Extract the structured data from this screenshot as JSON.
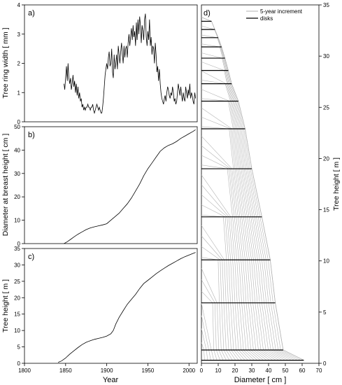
{
  "chart_data": [
    {
      "panel": "a)",
      "type": "line",
      "xlabel": "",
      "ylabel": "Tree ring width  [ mm ]",
      "xlim": [
        1800,
        2010
      ],
      "ylim": [
        0,
        4
      ],
      "yticks": [
        0,
        1,
        2,
        3,
        4
      ],
      "series": [
        {
          "points": [
            [
              1848,
              1.3
            ],
            [
              1849,
              1.1
            ],
            [
              1850,
              1.5
            ],
            [
              1851,
              1.9
            ],
            [
              1852,
              1.4
            ],
            [
              1853,
              2.0
            ],
            [
              1854,
              1.5
            ],
            [
              1855,
              1.3
            ],
            [
              1856,
              1.5
            ],
            [
              1857,
              1.1
            ],
            [
              1858,
              1.3
            ],
            [
              1859,
              1.6
            ],
            [
              1860,
              1.2
            ],
            [
              1861,
              1.4
            ],
            [
              1862,
              1.0
            ],
            [
              1863,
              1.3
            ],
            [
              1864,
              0.9
            ],
            [
              1865,
              1.2
            ],
            [
              1866,
              0.8
            ],
            [
              1867,
              1.0
            ],
            [
              1868,
              0.7
            ],
            [
              1869,
              0.8
            ],
            [
              1870,
              0.5
            ],
            [
              1871,
              0.6
            ],
            [
              1872,
              0.4
            ],
            [
              1873,
              0.5
            ],
            [
              1874,
              0.4
            ],
            [
              1875,
              0.5
            ],
            [
              1876,
              0.5
            ],
            [
              1877,
              0.6
            ],
            [
              1878,
              0.5
            ],
            [
              1879,
              0.5
            ],
            [
              1880,
              0.4
            ],
            [
              1881,
              0.5
            ],
            [
              1882,
              0.5
            ],
            [
              1883,
              0.6
            ],
            [
              1884,
              0.4
            ],
            [
              1885,
              0.3
            ],
            [
              1886,
              0.4
            ],
            [
              1887,
              0.5
            ],
            [
              1888,
              0.6
            ],
            [
              1889,
              0.5
            ],
            [
              1890,
              0.4
            ],
            [
              1891,
              0.5
            ],
            [
              1892,
              0.4
            ],
            [
              1893,
              0.3
            ],
            [
              1894,
              0.3
            ],
            [
              1895,
              0.5
            ],
            [
              1896,
              0.8
            ],
            [
              1897,
              1.2
            ],
            [
              1898,
              1.6
            ],
            [
              1899,
              1.8
            ],
            [
              1900,
              2.0
            ],
            [
              1901,
              1.8
            ],
            [
              1902,
              2.2
            ],
            [
              1903,
              2.4
            ],
            [
              1904,
              1.9
            ],
            [
              1905,
              2.0
            ],
            [
              1906,
              2.5
            ],
            [
              1907,
              1.7
            ],
            [
              1908,
              1.5
            ],
            [
              1909,
              2.3
            ],
            [
              1910,
              1.8
            ],
            [
              1911,
              2.0
            ],
            [
              1912,
              2.3
            ],
            [
              1913,
              1.8
            ],
            [
              1914,
              2.6
            ],
            [
              1915,
              2.3
            ],
            [
              1916,
              2.0
            ],
            [
              1917,
              2.4
            ],
            [
              1918,
              2.7
            ],
            [
              1919,
              2.3
            ],
            [
              1920,
              2.0
            ],
            [
              1921,
              2.6
            ],
            [
              1922,
              2.2
            ],
            [
              1923,
              2.5
            ],
            [
              1924,
              2.6
            ],
            [
              1925,
              2.2
            ],
            [
              1926,
              2.7
            ],
            [
              1927,
              3.0
            ],
            [
              1928,
              2.6
            ],
            [
              1929,
              2.9
            ],
            [
              1930,
              3.2
            ],
            [
              1931,
              2.8
            ],
            [
              1932,
              3.3
            ],
            [
              1933,
              2.9
            ],
            [
              1934,
              3.1
            ],
            [
              1935,
              2.6
            ],
            [
              1936,
              3.4
            ],
            [
              1937,
              2.8
            ],
            [
              1938,
              3.5
            ],
            [
              1939,
              3.0
            ],
            [
              1940,
              3.6
            ],
            [
              1941,
              3.3
            ],
            [
              1942,
              2.7
            ],
            [
              1943,
              3.3
            ],
            [
              1944,
              3.1
            ],
            [
              1945,
              2.8
            ],
            [
              1946,
              3.5
            ],
            [
              1947,
              3.7
            ],
            [
              1948,
              2.9
            ],
            [
              1949,
              2.6
            ],
            [
              1950,
              3.1
            ],
            [
              1951,
              2.8
            ],
            [
              1952,
              3.5
            ],
            [
              1953,
              2.6
            ],
            [
              1954,
              2.9
            ],
            [
              1955,
              2.3
            ],
            [
              1956,
              2.6
            ],
            [
              1957,
              2.5
            ],
            [
              1958,
              2.0
            ],
            [
              1959,
              2.7
            ],
            [
              1960,
              2.3
            ],
            [
              1961,
              1.7
            ],
            [
              1962,
              1.9
            ],
            [
              1963,
              1.4
            ],
            [
              1964,
              1.8
            ],
            [
              1965,
              1.3
            ],
            [
              1966,
              1.0
            ],
            [
              1967,
              0.8
            ],
            [
              1968,
              0.7
            ],
            [
              1969,
              0.6
            ],
            [
              1970,
              0.8
            ],
            [
              1971,
              0.9
            ],
            [
              1972,
              0.7
            ],
            [
              1973,
              1.0
            ],
            [
              1974,
              1.2
            ],
            [
              1975,
              1.1
            ],
            [
              1976,
              0.9
            ],
            [
              1977,
              0.8
            ],
            [
              1978,
              1.0
            ],
            [
              1979,
              0.9
            ],
            [
              1980,
              1.2
            ],
            [
              1981,
              1.0
            ],
            [
              1982,
              0.7
            ],
            [
              1983,
              0.8
            ],
            [
              1984,
              0.6
            ],
            [
              1985,
              0.7
            ],
            [
              1986,
              1.0
            ],
            [
              1987,
              1.3
            ],
            [
              1988,
              1.1
            ],
            [
              1989,
              0.9
            ],
            [
              1990,
              1.2
            ],
            [
              1991,
              0.9
            ],
            [
              1992,
              0.7
            ],
            [
              1993,
              1.0
            ],
            [
              1994,
              0.8
            ],
            [
              1995,
              0.7
            ],
            [
              1996,
              1.2
            ],
            [
              1997,
              1.0
            ],
            [
              1998,
              0.8
            ],
            [
              1999,
              1.1
            ],
            [
              2000,
              0.9
            ],
            [
              2001,
              1.3
            ],
            [
              2002,
              0.8
            ],
            [
              2003,
              1.0
            ],
            [
              2004,
              0.9
            ],
            [
              2005,
              0.7
            ],
            [
              2006,
              0.6
            ],
            [
              2007,
              1.0
            ],
            [
              2008,
              0.8
            ]
          ]
        }
      ]
    },
    {
      "panel": "b)",
      "type": "line",
      "xlabel": "",
      "ylabel": "Diameter at breast height  [ cm ]",
      "xlim": [
        1800,
        2010
      ],
      "ylim": [
        0,
        50
      ],
      "yticks": [
        0,
        10,
        20,
        30,
        40,
        50
      ],
      "series": [
        {
          "points": [
            [
              1848,
              0
            ],
            [
              1852,
              0.8
            ],
            [
              1856,
              1.8
            ],
            [
              1860,
              2.8
            ],
            [
              1865,
              4.0
            ],
            [
              1870,
              5.0
            ],
            [
              1875,
              6.0
            ],
            [
              1880,
              6.7
            ],
            [
              1885,
              7.2
            ],
            [
              1890,
              7.6
            ],
            [
              1895,
              8.0
            ],
            [
              1900,
              8.5
            ],
            [
              1905,
              10.0
            ],
            [
              1910,
              11.5
            ],
            [
              1915,
              13.0
            ],
            [
              1920,
              15.0
            ],
            [
              1925,
              17.0
            ],
            [
              1930,
              19.5
            ],
            [
              1935,
              22.5
            ],
            [
              1940,
              25.5
            ],
            [
              1945,
              29.0
            ],
            [
              1950,
              32.0
            ],
            [
              1955,
              34.5
            ],
            [
              1960,
              37.0
            ],
            [
              1965,
              39.5
            ],
            [
              1970,
              41.0
            ],
            [
              1975,
              42.0
            ],
            [
              1980,
              42.7
            ],
            [
              1985,
              43.7
            ],
            [
              1990,
              45.0
            ],
            [
              1995,
              46.0
            ],
            [
              2000,
              47.0
            ],
            [
              2005,
              48.0
            ],
            [
              2008,
              48.7
            ]
          ]
        }
      ]
    },
    {
      "panel": "c)",
      "type": "line",
      "xlabel": "Year",
      "ylabel": "Tree height  [ m ]",
      "xlim": [
        1800,
        2010
      ],
      "ylim": [
        0,
        35
      ],
      "yticks": [
        0,
        5,
        10,
        15,
        20,
        25,
        30,
        35
      ],
      "xticks": [
        1800,
        1850,
        1900,
        1950,
        2000
      ],
      "series": [
        {
          "points": [
            [
              1841,
              0.3
            ],
            [
              1845,
              0.7
            ],
            [
              1850,
              1.6
            ],
            [
              1855,
              2.8
            ],
            [
              1860,
              3.8
            ],
            [
              1865,
              4.8
            ],
            [
              1870,
              5.7
            ],
            [
              1875,
              6.4
            ],
            [
              1880,
              6.9
            ],
            [
              1885,
              7.3
            ],
            [
              1890,
              7.6
            ],
            [
              1895,
              7.9
            ],
            [
              1900,
              8.3
            ],
            [
              1905,
              9.0
            ],
            [
              1908,
              10.0
            ],
            [
              1911,
              12.0
            ],
            [
              1915,
              14.0
            ],
            [
              1920,
              16.0
            ],
            [
              1925,
              18.0
            ],
            [
              1930,
              19.5
            ],
            [
              1935,
              21.0
            ],
            [
              1940,
              22.8
            ],
            [
              1945,
              24.3
            ],
            [
              1950,
              25.3
            ],
            [
              1955,
              26.3
            ],
            [
              1960,
              27.3
            ],
            [
              1965,
              28.2
            ],
            [
              1970,
              29.0
            ],
            [
              1975,
              29.8
            ],
            [
              1980,
              30.5
            ],
            [
              1985,
              31.2
            ],
            [
              1990,
              31.9
            ],
            [
              1995,
              32.5
            ],
            [
              2000,
              33.0
            ],
            [
              2005,
              33.5
            ],
            [
              2008,
              33.8
            ]
          ]
        }
      ]
    },
    {
      "panel": "d)",
      "type": "line",
      "xlabel": "Diameter  [ cm ]",
      "ylabel": "Tree height  [ m ]",
      "xlim": [
        0,
        70
      ],
      "ylim": [
        0,
        35
      ],
      "xticks": [
        0,
        10,
        20,
        30,
        40,
        50,
        60,
        70
      ],
      "yticks": [
        0,
        5,
        10,
        15,
        20,
        25,
        30,
        35
      ],
      "legend": {
        "position": "top-right",
        "entries": [
          {
            "label": "5-year increment",
            "color": "#b3b3b3"
          },
          {
            "label": "disks",
            "color": "#000000"
          }
        ]
      },
      "disks": [
        {
          "height": 0.3,
          "diameter": 61
        },
        {
          "height": 1.3,
          "diameter": 48.7
        },
        {
          "height": 5.9,
          "diameter": 44
        },
        {
          "height": 10.1,
          "diameter": 41
        },
        {
          "height": 14.3,
          "diameter": 36
        },
        {
          "height": 19.0,
          "diameter": 30
        },
        {
          "height": 22.9,
          "diameter": 26
        },
        {
          "height": 25.6,
          "diameter": 22
        },
        {
          "height": 27.3,
          "diameter": 18
        },
        {
          "height": 28.6,
          "diameter": 16
        },
        {
          "height": 29.8,
          "diameter": 14
        },
        {
          "height": 30.9,
          "diameter": 12
        },
        {
          "height": 31.8,
          "diameter": 10
        },
        {
          "height": 32.6,
          "diameter": 8
        },
        {
          "height": 33.4,
          "diameter": 6
        }
      ],
      "tree_total_height": 33.8,
      "increment_count": 33
    }
  ]
}
